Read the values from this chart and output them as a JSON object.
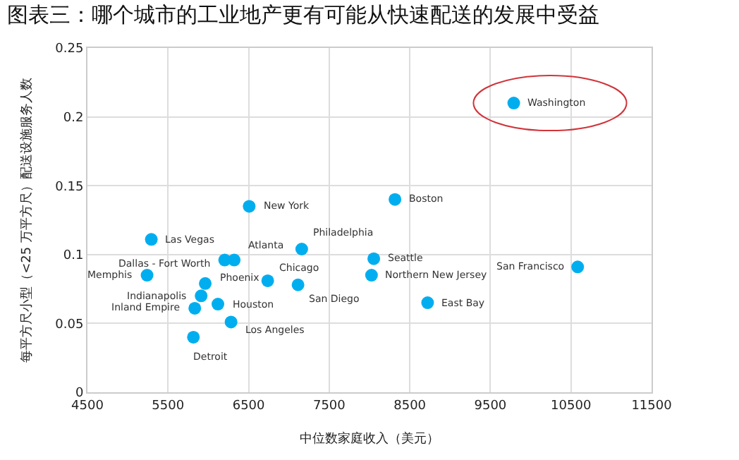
{
  "chart_data": {
    "type": "scatter",
    "title": "图表三：哪个城市的工业地产更有可能从快速配送的发展中受益",
    "xlabel": "中位数家庭收入（美元）",
    "ylabel": "每平方尺小型（<25 万平方尺）配送设施服务人数",
    "x": [
      5293,
      5240,
      6203,
      6321,
      6507,
      5962,
      5911,
      5832,
      6119,
      6282,
      5815,
      6737,
      7113,
      7159,
      8053,
      8025,
      8316,
      8721,
      10583,
      9790
    ],
    "series": [
      {
        "color": "#00aeef",
        "values": [
          0.111,
          0.085,
          0.096,
          0.096,
          0.135,
          0.079,
          0.07,
          0.061,
          0.064,
          0.051,
          0.04,
          0.081,
          0.078,
          0.104,
          0.097,
          0.085,
          0.14,
          0.065,
          0.091,
          0.21
        ]
      }
    ],
    "annotations": [
      {
        "text": "Las Vegas",
        "x": 5293,
        "y": 0.111
      },
      {
        "text": "Memphis",
        "x": 5240,
        "y": 0.085
      },
      {
        "text": "Dallas - Fort Worth",
        "x": 6203,
        "y": 0.096
      },
      {
        "text": "Atlanta",
        "x": 6321,
        "y": 0.096
      },
      {
        "text": "New York",
        "x": 6507,
        "y": 0.135
      },
      {
        "text": "Phoenix",
        "x": 5962,
        "y": 0.079
      },
      {
        "text": "Indianapolis",
        "x": 5911,
        "y": 0.07
      },
      {
        "text": "Inland Empire",
        "x": 5832,
        "y": 0.061
      },
      {
        "text": "Houston",
        "x": 6119,
        "y": 0.064
      },
      {
        "text": "Los Angeles",
        "x": 6282,
        "y": 0.051
      },
      {
        "text": "Detroit",
        "x": 5815,
        "y": 0.04
      },
      {
        "text": "Chicago",
        "x": 6737,
        "y": 0.081
      },
      {
        "text": "San Diego",
        "x": 7113,
        "y": 0.078
      },
      {
        "text": "Philadelphia",
        "x": 7159,
        "y": 0.104
      },
      {
        "text": "Seattle",
        "x": 8053,
        "y": 0.097
      },
      {
        "text": "Northern New Jersey",
        "x": 8025,
        "y": 0.085
      },
      {
        "text": "Boston",
        "x": 8316,
        "y": 0.14
      },
      {
        "text": "East Bay",
        "x": 8721,
        "y": 0.065
      },
      {
        "text": "San Francisco",
        "x": 10583,
        "y": 0.091
      },
      {
        "text": "Washington",
        "x": 9790,
        "y": 0.21
      }
    ],
    "xlim": [
      4500,
      11500
    ],
    "xticks": [
      4500,
      5500,
      6500,
      7500,
      8500,
      9500,
      10500,
      11500
    ],
    "ylim": [
      0,
      0.25
    ],
    "yticks": [
      0,
      0.05,
      0.1,
      0.15,
      0.2,
      0.25
    ],
    "grid": true,
    "marker": "circle"
  }
}
